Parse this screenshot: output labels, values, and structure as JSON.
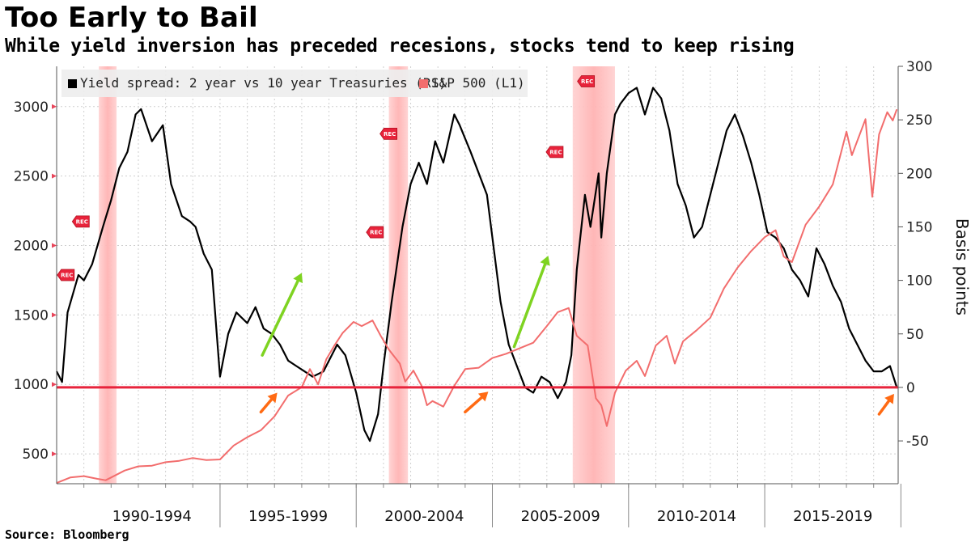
{
  "title": "Too Early to Bail",
  "subtitle": "While yield inversion has preceded recesions, stocks tend to keep rising",
  "source": "Source: Bloomberg",
  "chart_data": {
    "type": "line",
    "x_categories": [
      "1990-1994",
      "1995-1999",
      "2000-2004",
      "2005-2009",
      "2010-2014",
      "2015-2019"
    ],
    "x_range": [
      1989.0,
      2019.9
    ],
    "left_axis": {
      "label": "",
      "ticks": [
        500,
        1000,
        1500,
        2000,
        2500,
        3000
      ],
      "range": [
        285,
        3290
      ],
      "tick_color": "#e8455a"
    },
    "right_axis": {
      "label": "Basis points",
      "ticks": [
        -50,
        0,
        50,
        100,
        150,
        200,
        250,
        300
      ],
      "range": [
        -90,
        300
      ]
    },
    "legend": [
      {
        "name": "Yield spread: 2 year vs 10 year Treasuries (R1)",
        "color": "#000000"
      },
      {
        "name": "S&P 500 (L1)",
        "color": "#f26d6d"
      }
    ],
    "recessions": [
      [
        1990.55,
        1991.2
      ],
      [
        2001.2,
        2001.9
      ],
      [
        2007.95,
        2009.5
      ]
    ],
    "recession_label": "REC",
    "rec_markers": [
      {
        "x": 1989.35,
        "y_bp": 105
      },
      {
        "x": 1989.9,
        "y_bp": 155
      },
      {
        "x": 2000.7,
        "y_bp": 145
      },
      {
        "x": 2001.2,
        "y_bp": 237
      },
      {
        "x": 2007.3,
        "y_bp": 220
      },
      {
        "x": 2008.45,
        "y_bp": 286
      }
    ],
    "zero_line": {
      "value_bp": 0,
      "color": "#e8233b"
    },
    "series": [
      {
        "name": "Yield spread: 2 year vs 10 year Treasuries (R1)",
        "axis": "right",
        "color": "#000000",
        "points": [
          [
            1989.0,
            15
          ],
          [
            1989.2,
            5
          ],
          [
            1989.4,
            70
          ],
          [
            1989.8,
            105
          ],
          [
            1990.0,
            100
          ],
          [
            1990.3,
            115
          ],
          [
            1990.7,
            150
          ],
          [
            1991.0,
            175
          ],
          [
            1991.3,
            205
          ],
          [
            1991.6,
            220
          ],
          [
            1991.9,
            255
          ],
          [
            1992.1,
            260
          ],
          [
            1992.5,
            230
          ],
          [
            1992.9,
            245
          ],
          [
            1993.2,
            190
          ],
          [
            1993.6,
            160
          ],
          [
            1993.9,
            155
          ],
          [
            1994.1,
            150
          ],
          [
            1994.4,
            125
          ],
          [
            1994.7,
            110
          ],
          [
            1995.0,
            10
          ],
          [
            1995.3,
            50
          ],
          [
            1995.6,
            70
          ],
          [
            1996.0,
            60
          ],
          [
            1996.3,
            75
          ],
          [
            1996.6,
            55
          ],
          [
            1996.9,
            50
          ],
          [
            1997.2,
            40
          ],
          [
            1997.5,
            25
          ],
          [
            1997.8,
            20
          ],
          [
            1998.1,
            15
          ],
          [
            1998.4,
            10
          ],
          [
            1998.8,
            15
          ],
          [
            1999.0,
            25
          ],
          [
            1999.3,
            40
          ],
          [
            1999.6,
            30
          ],
          [
            2000.0,
            -5
          ],
          [
            2000.3,
            -40
          ],
          [
            2000.5,
            -50
          ],
          [
            2000.8,
            -25
          ],
          [
            2001.0,
            20
          ],
          [
            2001.3,
            80
          ],
          [
            2001.7,
            150
          ],
          [
            2002.0,
            190
          ],
          [
            2002.3,
            210
          ],
          [
            2002.6,
            190
          ],
          [
            2002.9,
            230
          ],
          [
            2003.2,
            210
          ],
          [
            2003.6,
            255
          ],
          [
            2003.8,
            245
          ],
          [
            2004.2,
            220
          ],
          [
            2004.5,
            200
          ],
          [
            2004.8,
            180
          ],
          [
            2005.0,
            140
          ],
          [
            2005.3,
            80
          ],
          [
            2005.6,
            40
          ],
          [
            2005.9,
            20
          ],
          [
            2006.2,
            0
          ],
          [
            2006.5,
            -5
          ],
          [
            2006.8,
            10
          ],
          [
            2007.1,
            5
          ],
          [
            2007.4,
            -10
          ],
          [
            2007.7,
            5
          ],
          [
            2007.9,
            30
          ],
          [
            2008.1,
            110
          ],
          [
            2008.4,
            180
          ],
          [
            2008.6,
            150
          ],
          [
            2008.9,
            200
          ],
          [
            2009.0,
            140
          ],
          [
            2009.2,
            200
          ],
          [
            2009.5,
            255
          ],
          [
            2009.7,
            265
          ],
          [
            2010.0,
            275
          ],
          [
            2010.3,
            280
          ],
          [
            2010.6,
            255
          ],
          [
            2010.9,
            280
          ],
          [
            2011.2,
            270
          ],
          [
            2011.5,
            240
          ],
          [
            2011.8,
            190
          ],
          [
            2012.1,
            170
          ],
          [
            2012.4,
            140
          ],
          [
            2012.7,
            150
          ],
          [
            2013.0,
            180
          ],
          [
            2013.3,
            210
          ],
          [
            2013.6,
            240
          ],
          [
            2013.9,
            255
          ],
          [
            2014.2,
            235
          ],
          [
            2014.5,
            210
          ],
          [
            2014.8,
            180
          ],
          [
            2015.1,
            145
          ],
          [
            2015.4,
            140
          ],
          [
            2015.7,
            130
          ],
          [
            2016.0,
            110
          ],
          [
            2016.3,
            100
          ],
          [
            2016.6,
            85
          ],
          [
            2016.9,
            130
          ],
          [
            2017.2,
            115
          ],
          [
            2017.5,
            95
          ],
          [
            2017.8,
            80
          ],
          [
            2018.1,
            55
          ],
          [
            2018.4,
            40
          ],
          [
            2018.7,
            25
          ],
          [
            2019.0,
            15
          ],
          [
            2019.3,
            15
          ],
          [
            2019.6,
            20
          ],
          [
            2019.85,
            0
          ]
        ]
      },
      {
        "name": "S&P 500 (L1)",
        "axis": "left",
        "color": "#f26d6d",
        "points": [
          [
            1989.0,
            290
          ],
          [
            1989.5,
            330
          ],
          [
            1990.0,
            340
          ],
          [
            1990.5,
            320
          ],
          [
            1990.8,
            310
          ],
          [
            1991.0,
            330
          ],
          [
            1991.5,
            380
          ],
          [
            1992.0,
            410
          ],
          [
            1992.5,
            415
          ],
          [
            1993.0,
            440
          ],
          [
            1993.5,
            450
          ],
          [
            1994.0,
            470
          ],
          [
            1994.5,
            455
          ],
          [
            1995.0,
            460
          ],
          [
            1995.5,
            560
          ],
          [
            1996.0,
            620
          ],
          [
            1996.5,
            670
          ],
          [
            1997.0,
            770
          ],
          [
            1997.5,
            920
          ],
          [
            1998.0,
            980
          ],
          [
            1998.3,
            1110
          ],
          [
            1998.6,
            1000
          ],
          [
            1998.9,
            1180
          ],
          [
            1999.2,
            1280
          ],
          [
            1999.5,
            1370
          ],
          [
            1999.9,
            1450
          ],
          [
            2000.2,
            1420
          ],
          [
            2000.6,
            1460
          ],
          [
            2000.9,
            1350
          ],
          [
            2001.2,
            1250
          ],
          [
            2001.6,
            1150
          ],
          [
            2001.8,
            1020
          ],
          [
            2002.1,
            1100
          ],
          [
            2002.4,
            990
          ],
          [
            2002.6,
            850
          ],
          [
            2002.8,
            880
          ],
          [
            2003.2,
            840
          ],
          [
            2003.6,
            990
          ],
          [
            2004.0,
            1110
          ],
          [
            2004.5,
            1120
          ],
          [
            2005.0,
            1190
          ],
          [
            2005.5,
            1220
          ],
          [
            2006.0,
            1260
          ],
          [
            2006.5,
            1300
          ],
          [
            2007.0,
            1420
          ],
          [
            2007.4,
            1520
          ],
          [
            2007.8,
            1550
          ],
          [
            2008.1,
            1350
          ],
          [
            2008.5,
            1280
          ],
          [
            2008.8,
            900
          ],
          [
            2009.0,
            850
          ],
          [
            2009.2,
            700
          ],
          [
            2009.5,
            940
          ],
          [
            2009.9,
            1100
          ],
          [
            2010.3,
            1170
          ],
          [
            2010.6,
            1060
          ],
          [
            2011.0,
            1280
          ],
          [
            2011.4,
            1350
          ],
          [
            2011.7,
            1150
          ],
          [
            2012.0,
            1310
          ],
          [
            2012.5,
            1390
          ],
          [
            2013.0,
            1480
          ],
          [
            2013.5,
            1690
          ],
          [
            2014.0,
            1840
          ],
          [
            2014.5,
            1960
          ],
          [
            2015.0,
            2060
          ],
          [
            2015.4,
            2110
          ],
          [
            2015.7,
            1920
          ],
          [
            2016.0,
            1880
          ],
          [
            2016.5,
            2150
          ],
          [
            2017.0,
            2280
          ],
          [
            2017.5,
            2440
          ],
          [
            2018.0,
            2820
          ],
          [
            2018.2,
            2650
          ],
          [
            2018.7,
            2910
          ],
          [
            2018.95,
            2350
          ],
          [
            2019.2,
            2800
          ],
          [
            2019.5,
            2960
          ],
          [
            2019.7,
            2900
          ],
          [
            2019.85,
            2980
          ]
        ]
      }
    ]
  }
}
